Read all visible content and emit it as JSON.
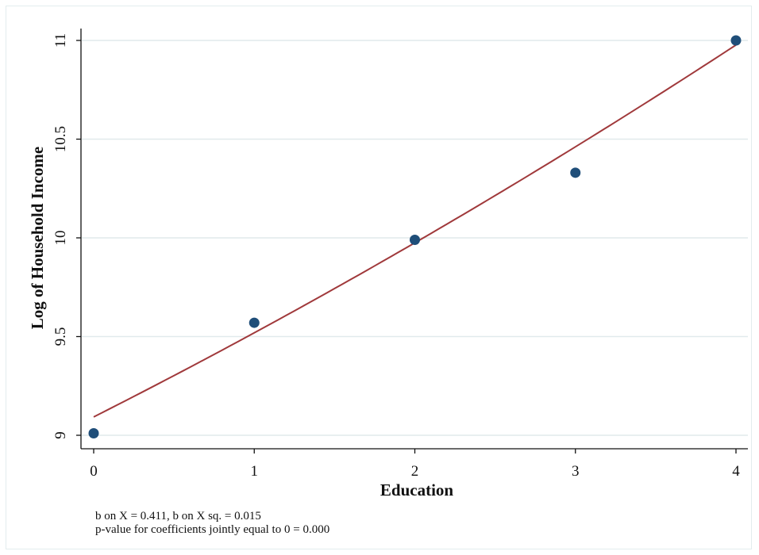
{
  "chart_data": {
    "type": "scatter",
    "xlabel": "Education",
    "ylabel": "Log of Household Income",
    "xlim": [
      0,
      4
    ],
    "ylim": [
      9,
      11
    ],
    "xticks": [
      0,
      1,
      2,
      3,
      4
    ],
    "yticks": [
      9,
      9.5,
      10,
      10.5,
      11
    ],
    "xtick_labels": [
      "0",
      "1",
      "2",
      "3",
      "4"
    ],
    "ytick_labels": [
      "9",
      "9.5",
      "10",
      "10.5",
      "11"
    ],
    "grid": "horizontal",
    "series": [
      {
        "type": "scatter",
        "x": [
          0,
          1,
          2,
          3,
          4
        ],
        "y": [
          9.01,
          9.57,
          9.99,
          10.33,
          11.0
        ],
        "color": "#1f4e79"
      },
      {
        "type": "line",
        "fit": "quadratic",
        "b0": 9.093,
        "b1": 0.411,
        "b2": 0.015,
        "color": "#a0393b"
      }
    ],
    "notes": [
      "b on X = 0.411, b on X sq. = 0.015",
      "p-value for coefficients jointly equal to 0 = 0.000"
    ]
  }
}
